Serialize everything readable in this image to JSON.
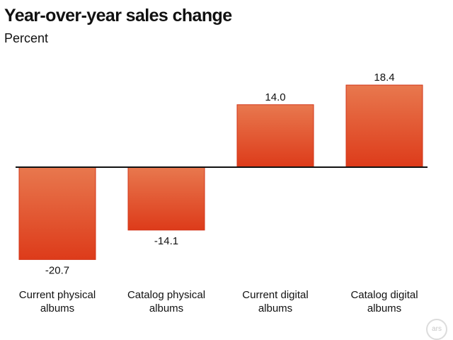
{
  "chart_data": {
    "type": "bar",
    "title": "Year-over-year sales change",
    "subtitle": "Percent",
    "categories": [
      [
        "Current physical",
        "albums"
      ],
      [
        "Catalog physical",
        "albums"
      ],
      [
        "Current digital",
        "albums"
      ],
      [
        "Catalog digital",
        "albums"
      ]
    ],
    "values": [
      -20.7,
      -14.1,
      14.0,
      18.4
    ],
    "value_labels": [
      "-20.7",
      "-14.1",
      "14.0",
      "18.4"
    ],
    "grid": false,
    "legend": "none",
    "colors": {
      "bar_top": "#e8784e",
      "bar_bottom": "#dd3b1a",
      "bar_edge": "#d2361a",
      "baseline": "#111111"
    }
  },
  "watermark": {
    "text": "ars"
  }
}
